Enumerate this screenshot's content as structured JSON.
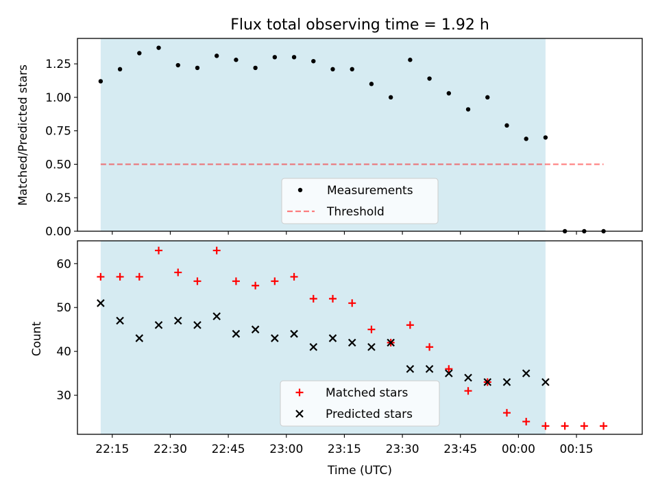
{
  "chart_data": [
    {
      "type": "scatter",
      "title": "Flux total observing time = 1.92 h",
      "ylabel": "Matched/Predicted stars",
      "xlim": [
        "22:06",
        "00:32"
      ],
      "ylim": [
        0,
        1.44
      ],
      "yticks": [
        0,
        0.25,
        0.5,
        0.75,
        1.0,
        1.25
      ],
      "ytick_labels": [
        "0.00",
        "0.25",
        "0.50",
        "0.75",
        "1.00",
        "1.25"
      ],
      "shaded_span": [
        "22:12",
        "00:07"
      ],
      "threshold": {
        "y": 0.5,
        "x_range": [
          "22:12",
          "00:22"
        ]
      },
      "legend": {
        "placement": "lower center",
        "entries": [
          "Measurements",
          "Threshold"
        ]
      },
      "series": [
        {
          "name": "Measurements",
          "x": [
            "22:12",
            "22:17",
            "22:22",
            "22:27",
            "22:32",
            "22:37",
            "22:42",
            "22:47",
            "22:52",
            "22:57",
            "23:02",
            "23:07",
            "23:12",
            "23:17",
            "23:22",
            "23:27",
            "23:32",
            "23:37",
            "23:42",
            "23:47",
            "23:52",
            "23:57",
            "00:02",
            "00:07",
            "00:12",
            "00:17",
            "00:22"
          ],
          "y": [
            1.12,
            1.21,
            1.33,
            1.37,
            1.24,
            1.22,
            1.31,
            1.28,
            1.22,
            1.3,
            1.3,
            1.27,
            1.21,
            1.21,
            1.1,
            1.0,
            1.28,
            1.14,
            1.03,
            0.91,
            1.0,
            0.79,
            0.69,
            0.7,
            0.0,
            0.0,
            0.0
          ]
        }
      ]
    },
    {
      "type": "scatter",
      "xlabel": "Time (UTC)",
      "ylabel": "Count",
      "xlim": [
        "22:06",
        "00:32"
      ],
      "ylim": [
        21.1,
        65.2
      ],
      "yticks": [
        30,
        40,
        50,
        60
      ],
      "ytick_labels": [
        "30",
        "40",
        "50",
        "60"
      ],
      "xticks": [
        "22:15",
        "22:30",
        "22:45",
        "23:00",
        "23:15",
        "23:30",
        "23:45",
        "00:00",
        "00:15"
      ],
      "shaded_span": [
        "22:12",
        "00:07"
      ],
      "legend": {
        "placement": "lower center",
        "entries": [
          "Matched stars",
          "Predicted stars"
        ]
      },
      "series": [
        {
          "name": "Matched stars",
          "color": "#ff0000",
          "x": [
            "22:12",
            "22:17",
            "22:22",
            "22:27",
            "22:32",
            "22:37",
            "22:42",
            "22:47",
            "22:52",
            "22:57",
            "23:02",
            "23:07",
            "23:12",
            "23:17",
            "23:22",
            "23:27",
            "23:32",
            "23:37",
            "23:42",
            "23:47",
            "23:52",
            "23:57",
            "00:02",
            "00:07",
            "00:12",
            "00:17",
            "00:22"
          ],
          "y": [
            57,
            57,
            57,
            63,
            58,
            56,
            63,
            56,
            55,
            56,
            57,
            52,
            52,
            51,
            45,
            42,
            46,
            41,
            36,
            31,
            33,
            26,
            24,
            23,
            23,
            23,
            23
          ]
        },
        {
          "name": "Predicted stars",
          "color": "#000000",
          "x": [
            "22:12",
            "22:17",
            "22:22",
            "22:27",
            "22:32",
            "22:37",
            "22:42",
            "22:47",
            "22:52",
            "22:57",
            "23:02",
            "23:07",
            "23:12",
            "23:17",
            "23:22",
            "23:27",
            "23:32",
            "23:37",
            "23:42",
            "23:47",
            "23:52",
            "23:57",
            "00:02",
            "00:07"
          ],
          "y": [
            51,
            47,
            43,
            46,
            47,
            46,
            48,
            44,
            45,
            43,
            44,
            41,
            43,
            42,
            41,
            42,
            36,
            36,
            35,
            34,
            33,
            33,
            35,
            33
          ]
        }
      ]
    }
  ]
}
